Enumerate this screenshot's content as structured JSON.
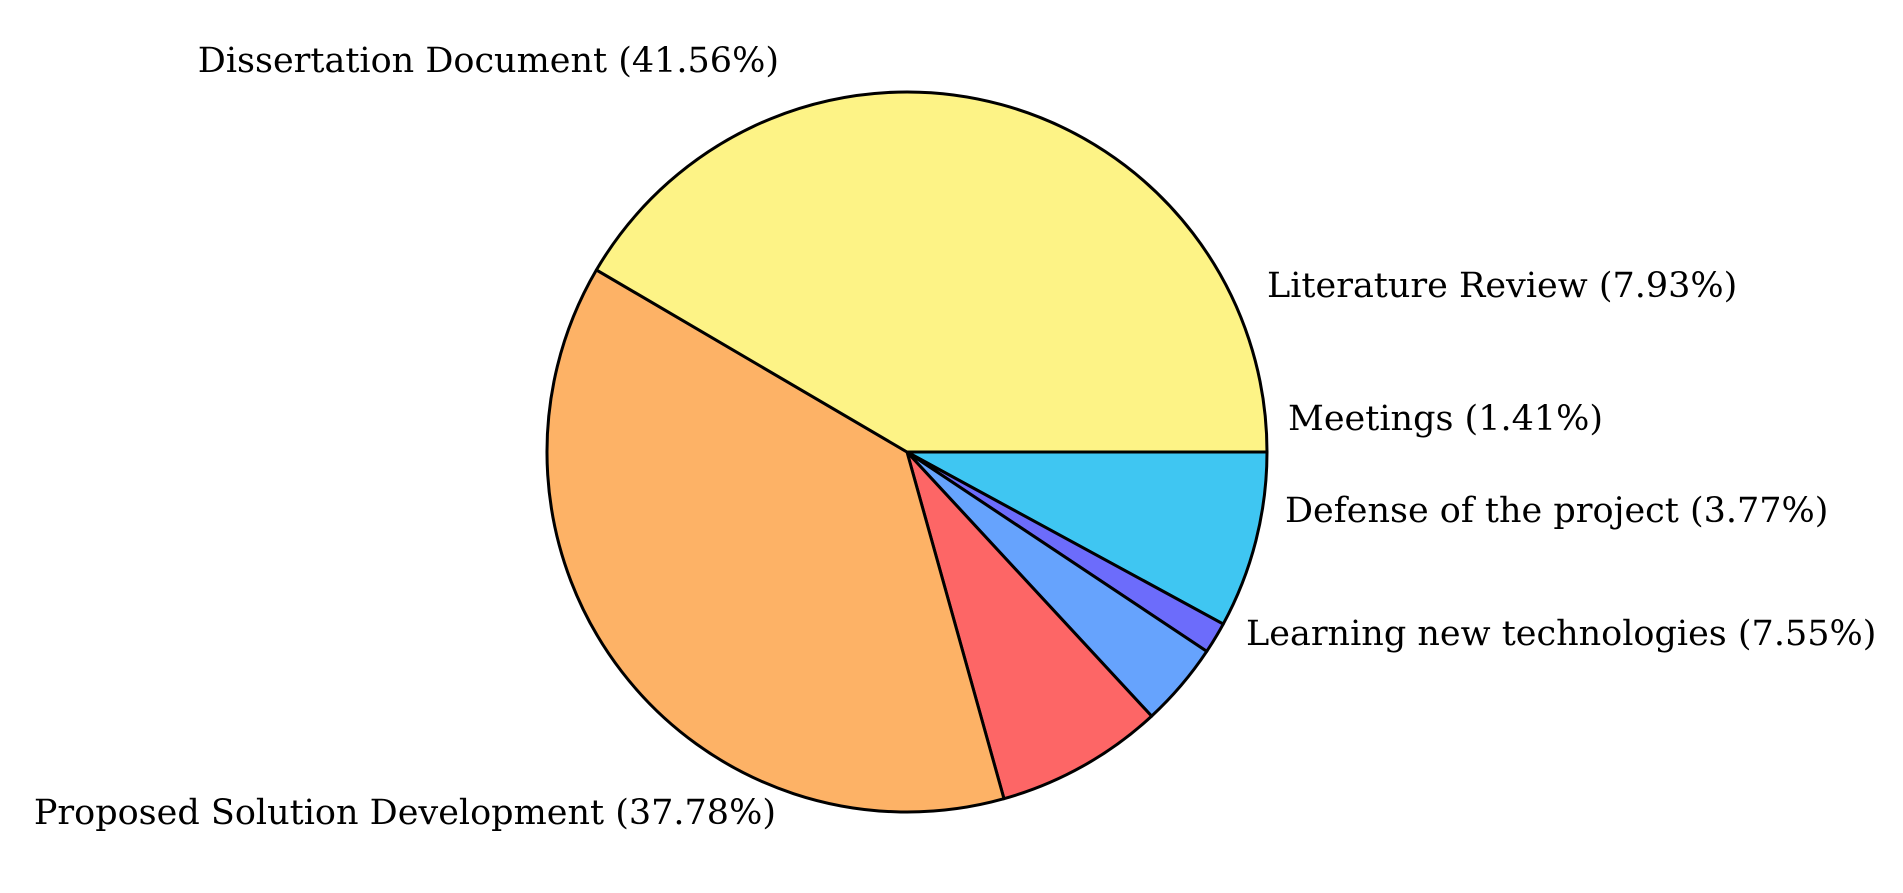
{
  "chart_data": {
    "type": "pie",
    "slices": [
      {
        "label": "Literature Review",
        "value": 7.93,
        "label_text": "Literature Review (7.93%)",
        "color": "#3fc6f2"
      },
      {
        "label": "Meetings",
        "value": 1.41,
        "label_text": "Meetings (1.41%)",
        "color": "#6c6cfb"
      },
      {
        "label": "Defense of the project",
        "value": 3.77,
        "label_text": "Defense of the project (3.77%)",
        "color": "#66a3fd"
      },
      {
        "label": "Learning new technologies",
        "value": 7.55,
        "label_text": "Learning new technologies (7.55%)",
        "color": "#fd6666"
      },
      {
        "label": "Proposed Solution Development",
        "value": 37.78,
        "label_text": "Proposed Solution Development (37.78%)",
        "color": "#fdb266"
      },
      {
        "label": "Dissertation Document",
        "value": 41.56,
        "label_text": "Dissertation Document (41.56%)",
        "color": "#fdf386"
      }
    ],
    "direction": "clockwise",
    "legend": "none"
  }
}
